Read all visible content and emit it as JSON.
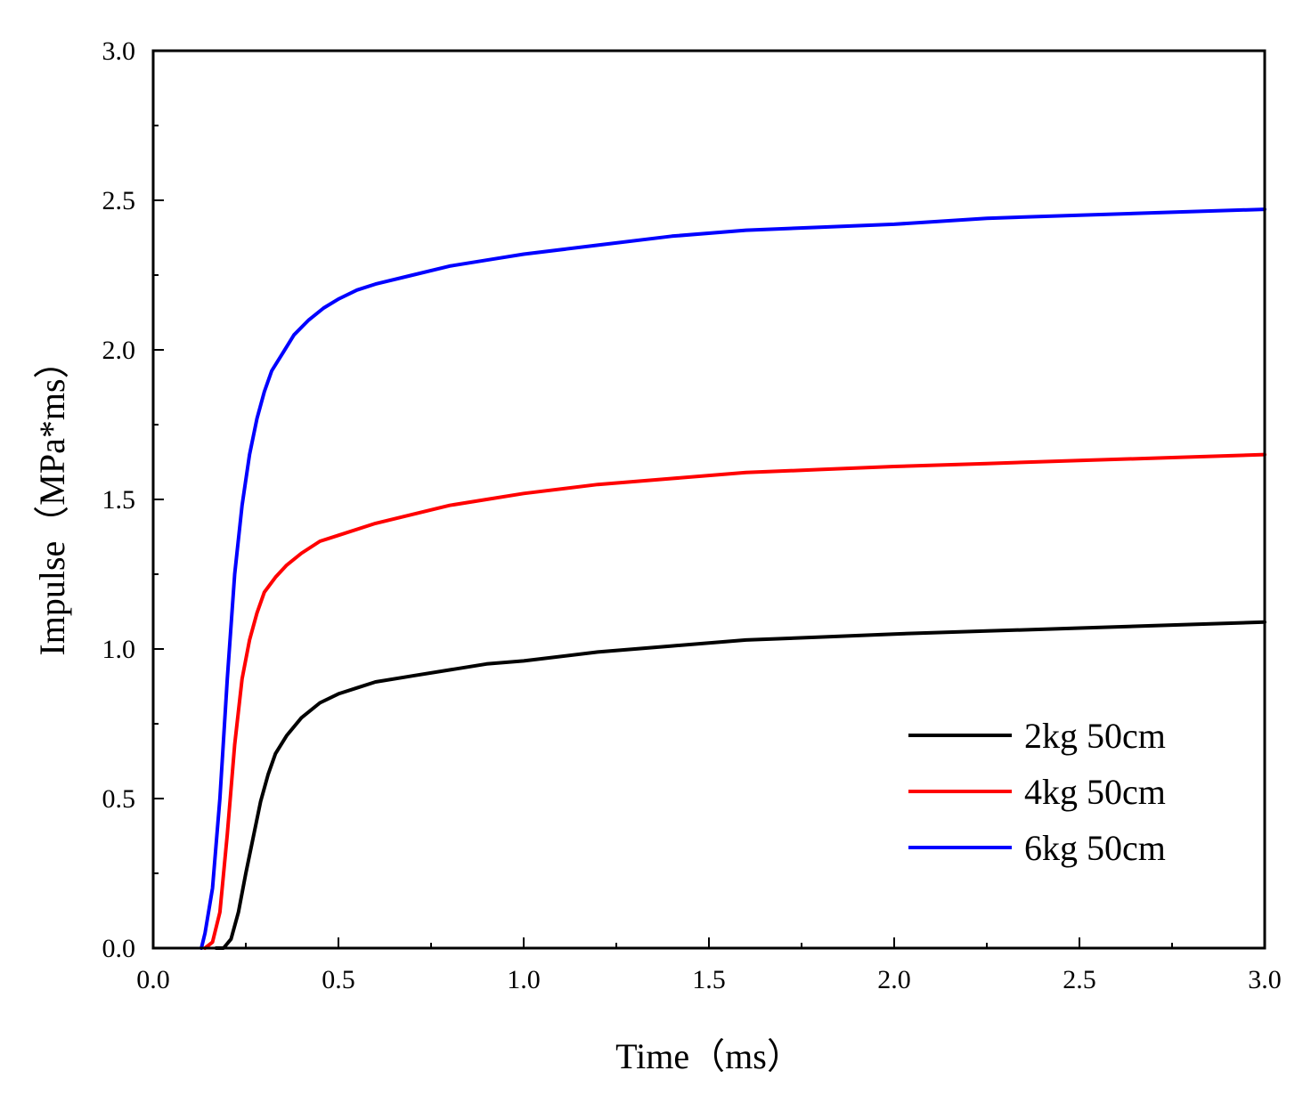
{
  "chart_data": {
    "type": "line",
    "title": "",
    "xlabel": "Time（ms）",
    "ylabel": "Impulse（MPa*ms）",
    "xlim": [
      0.0,
      3.0
    ],
    "ylim": [
      0.0,
      3.0
    ],
    "x_ticks": [
      "0.0",
      "0.5",
      "1.0",
      "1.5",
      "2.0",
      "2.5",
      "3.0"
    ],
    "y_ticks": [
      "0.0",
      "0.5",
      "1.0",
      "1.5",
      "2.0",
      "2.5",
      "3.0"
    ],
    "x_tick_values": [
      0.0,
      0.5,
      1.0,
      1.5,
      2.0,
      2.5,
      3.0
    ],
    "y_tick_values": [
      0.0,
      0.5,
      1.0,
      1.5,
      2.0,
      2.5,
      3.0
    ],
    "grid": false,
    "legend_position": "bottom-right",
    "series": [
      {
        "name": "2kg 50cm",
        "color": "#000000",
        "points": [
          [
            0.17,
            0.0
          ],
          [
            0.19,
            0.0
          ],
          [
            0.21,
            0.03
          ],
          [
            0.23,
            0.12
          ],
          [
            0.25,
            0.25
          ],
          [
            0.27,
            0.37
          ],
          [
            0.29,
            0.49
          ],
          [
            0.31,
            0.58
          ],
          [
            0.33,
            0.65
          ],
          [
            0.36,
            0.71
          ],
          [
            0.4,
            0.77
          ],
          [
            0.45,
            0.82
          ],
          [
            0.5,
            0.85
          ],
          [
            0.55,
            0.87
          ],
          [
            0.6,
            0.89
          ],
          [
            0.7,
            0.91
          ],
          [
            0.8,
            0.93
          ],
          [
            0.9,
            0.95
          ],
          [
            1.0,
            0.96
          ],
          [
            1.2,
            0.99
          ],
          [
            1.4,
            1.01
          ],
          [
            1.6,
            1.03
          ],
          [
            1.8,
            1.04
          ],
          [
            2.0,
            1.05
          ],
          [
            2.25,
            1.06
          ],
          [
            2.5,
            1.07
          ],
          [
            2.75,
            1.08
          ],
          [
            3.0,
            1.09
          ]
        ]
      },
      {
        "name": "4kg 50cm",
        "color": "#ff0000",
        "points": [
          [
            0.14,
            0.0
          ],
          [
            0.16,
            0.02
          ],
          [
            0.18,
            0.12
          ],
          [
            0.2,
            0.38
          ],
          [
            0.22,
            0.68
          ],
          [
            0.24,
            0.9
          ],
          [
            0.26,
            1.03
          ],
          [
            0.28,
            1.12
          ],
          [
            0.3,
            1.19
          ],
          [
            0.33,
            1.24
          ],
          [
            0.36,
            1.28
          ],
          [
            0.4,
            1.32
          ],
          [
            0.45,
            1.36
          ],
          [
            0.5,
            1.38
          ],
          [
            0.6,
            1.42
          ],
          [
            0.7,
            1.45
          ],
          [
            0.8,
            1.48
          ],
          [
            0.9,
            1.5
          ],
          [
            1.0,
            1.52
          ],
          [
            1.2,
            1.55
          ],
          [
            1.4,
            1.57
          ],
          [
            1.6,
            1.59
          ],
          [
            1.8,
            1.6
          ],
          [
            2.0,
            1.61
          ],
          [
            2.25,
            1.62
          ],
          [
            2.5,
            1.63
          ],
          [
            2.75,
            1.64
          ],
          [
            3.0,
            1.65
          ]
        ]
      },
      {
        "name": "6kg 50cm",
        "color": "#0000ff",
        "points": [
          [
            0.13,
            0.0
          ],
          [
            0.14,
            0.05
          ],
          [
            0.16,
            0.2
          ],
          [
            0.18,
            0.5
          ],
          [
            0.2,
            0.9
          ],
          [
            0.22,
            1.25
          ],
          [
            0.24,
            1.48
          ],
          [
            0.26,
            1.65
          ],
          [
            0.28,
            1.77
          ],
          [
            0.3,
            1.86
          ],
          [
            0.32,
            1.93
          ],
          [
            0.35,
            1.99
          ],
          [
            0.38,
            2.05
          ],
          [
            0.42,
            2.1
          ],
          [
            0.46,
            2.14
          ],
          [
            0.5,
            2.17
          ],
          [
            0.55,
            2.2
          ],
          [
            0.6,
            2.22
          ],
          [
            0.7,
            2.25
          ],
          [
            0.8,
            2.28
          ],
          [
            0.9,
            2.3
          ],
          [
            1.0,
            2.32
          ],
          [
            1.2,
            2.35
          ],
          [
            1.4,
            2.38
          ],
          [
            1.6,
            2.4
          ],
          [
            1.8,
            2.41
          ],
          [
            2.0,
            2.42
          ],
          [
            2.25,
            2.44
          ],
          [
            2.5,
            2.45
          ],
          [
            2.75,
            2.46
          ],
          [
            3.0,
            2.47
          ]
        ]
      }
    ]
  }
}
